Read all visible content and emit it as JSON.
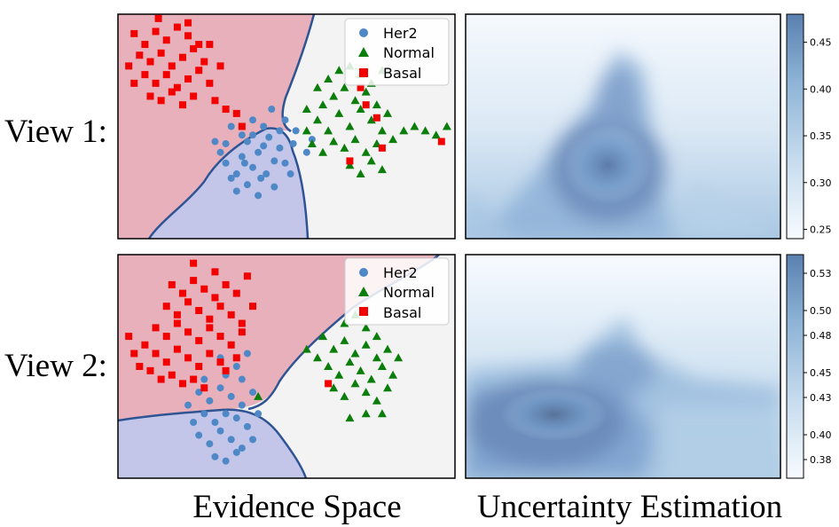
{
  "row_labels": [
    "View 1:",
    "View 2:"
  ],
  "column_titles": [
    "Evidence Space",
    "Uncertainty Estimation"
  ],
  "legend": [
    "Her2",
    "Normal",
    "Basal"
  ],
  "colors": {
    "her2": "#4f88c6",
    "normal": "#0a7d0a",
    "basal": "#f20000",
    "region_basal": "#e8b0bb",
    "region_her2": "#c3c6e8",
    "region_normal": "#f3f3f3",
    "boundary": "#2f5494",
    "unc_low": "#f7fbff",
    "unc_high": "#4a73a8"
  },
  "chart_data": [
    {
      "type": "scatter",
      "view": "View 1:",
      "title": "",
      "series": [
        {
          "name": "Her2",
          "marker": "circle",
          "points": [
            [
              0.42,
              0.52
            ],
            [
              0.4,
              0.44
            ],
            [
              0.38,
              0.4
            ],
            [
              0.46,
              0.38
            ],
            [
              0.44,
              0.3
            ],
            [
              0.5,
              0.33
            ],
            [
              0.48,
              0.45
            ],
            [
              0.52,
              0.4
            ],
            [
              0.55,
              0.3
            ],
            [
              0.58,
              0.36
            ],
            [
              0.6,
              0.42
            ],
            [
              0.54,
              0.52
            ],
            [
              0.46,
              0.48
            ],
            [
              0.5,
              0.55
            ],
            [
              0.56,
              0.47
            ],
            [
              0.44,
              0.22
            ],
            [
              0.48,
              0.25
            ],
            [
              0.4,
              0.35
            ],
            [
              0.36,
              0.45
            ],
            [
              0.62,
              0.35
            ],
            [
              0.64,
              0.3
            ],
            [
              0.65,
              0.44
            ],
            [
              0.7,
              0.4
            ],
            [
              0.72,
              0.46
            ],
            [
              0.57,
              0.6
            ],
            [
              0.62,
              0.55
            ],
            [
              0.66,
              0.5
            ],
            [
              0.52,
              0.2
            ],
            [
              0.58,
              0.24
            ],
            [
              0.42,
              0.28
            ],
            [
              0.5,
              0.48
            ],
            [
              0.54,
              0.43
            ],
            [
              0.47,
              0.35
            ],
            [
              0.53,
              0.28
            ],
            [
              0.6,
              0.5
            ]
          ]
        },
        {
          "name": "Normal",
          "marker": "triangle",
          "points": [
            [
              0.7,
              0.5
            ],
            [
              0.74,
              0.55
            ],
            [
              0.78,
              0.5
            ],
            [
              0.82,
              0.58
            ],
            [
              0.86,
              0.52
            ],
            [
              0.9,
              0.6
            ],
            [
              0.94,
              0.55
            ],
            [
              0.98,
              0.5
            ],
            [
              0.76,
              0.62
            ],
            [
              0.8,
              0.66
            ],
            [
              0.84,
              0.7
            ],
            [
              0.88,
              0.64
            ],
            [
              0.92,
              0.68
            ],
            [
              0.96,
              0.62
            ],
            [
              1.0,
              0.58
            ],
            [
              0.72,
              0.44
            ],
            [
              0.76,
              0.4
            ],
            [
              0.8,
              0.45
            ],
            [
              0.84,
              0.42
            ],
            [
              0.88,
              0.46
            ],
            [
              0.92,
              0.4
            ],
            [
              0.96,
              0.44
            ],
            [
              1.02,
              0.46
            ],
            [
              1.06,
              0.5
            ],
            [
              1.1,
              0.52
            ],
            [
              1.14,
              0.5
            ],
            [
              1.18,
              0.48
            ],
            [
              1.22,
              0.52
            ],
            [
              0.78,
              0.74
            ],
            [
              0.82,
              0.78
            ],
            [
              0.86,
              0.8
            ],
            [
              0.9,
              0.76
            ],
            [
              0.94,
              0.72
            ],
            [
              0.98,
              0.78
            ],
            [
              0.86,
              0.34
            ],
            [
              0.9,
              0.3
            ],
            [
              0.94,
              0.36
            ],
            [
              0.98,
              0.32
            ],
            [
              0.74,
              0.7
            ],
            [
              0.7,
              0.6
            ]
          ]
        },
        {
          "name": "Basal",
          "marker": "square",
          "points": [
            [
              0.06,
              0.95
            ],
            [
              0.1,
              0.9
            ],
            [
              0.14,
              0.96
            ],
            [
              0.18,
              0.92
            ],
            [
              0.22,
              0.98
            ],
            [
              0.26,
              0.94
            ],
            [
              0.3,
              0.9
            ],
            [
              0.08,
              0.85
            ],
            [
              0.12,
              0.82
            ],
            [
              0.16,
              0.86
            ],
            [
              0.2,
              0.8
            ],
            [
              0.24,
              0.84
            ],
            [
              0.28,
              0.88
            ],
            [
              0.32,
              0.82
            ],
            [
              0.1,
              0.76
            ],
            [
              0.14,
              0.72
            ],
            [
              0.18,
              0.76
            ],
            [
              0.22,
              0.7
            ],
            [
              0.26,
              0.74
            ],
            [
              0.3,
              0.78
            ],
            [
              0.34,
              0.72
            ],
            [
              0.12,
              0.66
            ],
            [
              0.16,
              0.64
            ],
            [
              0.2,
              0.68
            ],
            [
              0.24,
              0.62
            ],
            [
              0.28,
              0.66
            ],
            [
              0.36,
              0.64
            ],
            [
              0.4,
              0.6
            ],
            [
              0.44,
              0.58
            ],
            [
              0.04,
              0.8
            ],
            [
              0.06,
              0.72
            ],
            [
              0.34,
              0.9
            ],
            [
              0.38,
              0.8
            ],
            [
              0.26,
              1.0
            ],
            [
              0.15,
              1.02
            ],
            [
              0.46,
              0.52
            ],
            [
              0.92,
              0.62
            ],
            [
              0.96,
              0.56
            ],
            [
              0.9,
              0.7
            ],
            [
              0.98,
              0.42
            ],
            [
              1.2,
              0.45
            ],
            [
              0.86,
              0.36
            ]
          ]
        }
      ]
    },
    {
      "type": "heatmap",
      "view": "View 1:",
      "title": "",
      "colorbar_ticks": [
        0.25,
        0.3,
        0.35,
        0.4,
        0.45
      ],
      "colorbar_range": [
        0.24,
        0.48
      ]
    },
    {
      "type": "scatter",
      "view": "View 2:",
      "title": "",
      "series": [
        {
          "name": "Her2",
          "marker": "circle",
          "points": [
            [
              0.3,
              0.4
            ],
            [
              0.34,
              0.36
            ],
            [
              0.38,
              0.42
            ],
            [
              0.42,
              0.38
            ],
            [
              0.46,
              0.34
            ],
            [
              0.5,
              0.4
            ],
            [
              0.32,
              0.3
            ],
            [
              0.36,
              0.26
            ],
            [
              0.4,
              0.3
            ],
            [
              0.44,
              0.28
            ],
            [
              0.48,
              0.24
            ],
            [
              0.3,
              0.2
            ],
            [
              0.34,
              0.16
            ],
            [
              0.38,
              0.22
            ],
            [
              0.42,
              0.18
            ],
            [
              0.46,
              0.14
            ],
            [
              0.36,
              0.1
            ],
            [
              0.4,
              0.08
            ],
            [
              0.44,
              0.12
            ],
            [
              0.26,
              0.34
            ],
            [
              0.28,
              0.26
            ],
            [
              0.52,
              0.3
            ],
            [
              0.5,
              0.18
            ],
            [
              0.32,
              0.46
            ],
            [
              0.4,
              0.48
            ],
            [
              0.46,
              0.46
            ],
            [
              0.38,
              0.56
            ],
            [
              0.44,
              0.52
            ],
            [
              0.48,
              0.58
            ],
            [
              0.42,
              0.62
            ]
          ]
        },
        {
          "name": "Normal",
          "marker": "triangle",
          "points": [
            [
              0.76,
              0.66
            ],
            [
              0.8,
              0.6
            ],
            [
              0.84,
              0.64
            ],
            [
              0.88,
              0.58
            ],
            [
              0.92,
              0.62
            ],
            [
              0.96,
              0.56
            ],
            [
              0.78,
              0.52
            ],
            [
              0.82,
              0.48
            ],
            [
              0.86,
              0.54
            ],
            [
              0.9,
              0.5
            ],
            [
              0.94,
              0.46
            ],
            [
              0.98,
              0.52
            ],
            [
              1.02,
              0.48
            ],
            [
              0.8,
              0.42
            ],
            [
              0.84,
              0.38
            ],
            [
              0.88,
              0.44
            ],
            [
              0.92,
              0.4
            ],
            [
              0.96,
              0.36
            ],
            [
              1.0,
              0.42
            ],
            [
              0.84,
              0.72
            ],
            [
              0.88,
              0.76
            ],
            [
              0.92,
              0.7
            ],
            [
              0.96,
              0.66
            ],
            [
              1.0,
              0.6
            ],
            [
              1.04,
              0.56
            ],
            [
              0.74,
              0.56
            ],
            [
              0.7,
              0.6
            ],
            [
              0.86,
              0.28
            ],
            [
              0.92,
              0.3
            ],
            [
              0.98,
              0.3
            ],
            [
              0.52,
              0.38
            ]
          ]
        },
        {
          "name": "Basal",
          "marker": "square",
          "points": [
            [
              0.2,
              0.9
            ],
            [
              0.24,
              0.86
            ],
            [
              0.28,
              0.92
            ],
            [
              0.32,
              0.88
            ],
            [
              0.36,
              0.84
            ],
            [
              0.4,
              0.9
            ],
            [
              0.44,
              0.86
            ],
            [
              0.18,
              0.8
            ],
            [
              0.22,
              0.76
            ],
            [
              0.26,
              0.82
            ],
            [
              0.3,
              0.78
            ],
            [
              0.34,
              0.74
            ],
            [
              0.38,
              0.8
            ],
            [
              0.42,
              0.76
            ],
            [
              0.46,
              0.72
            ],
            [
              0.14,
              0.7
            ],
            [
              0.18,
              0.66
            ],
            [
              0.22,
              0.72
            ],
            [
              0.26,
              0.68
            ],
            [
              0.3,
              0.64
            ],
            [
              0.34,
              0.7
            ],
            [
              0.38,
              0.66
            ],
            [
              0.42,
              0.62
            ],
            [
              0.46,
              0.68
            ],
            [
              0.1,
              0.62
            ],
            [
              0.14,
              0.58
            ],
            [
              0.18,
              0.54
            ],
            [
              0.22,
              0.6
            ],
            [
              0.26,
              0.56
            ],
            [
              0.3,
              0.52
            ],
            [
              0.34,
              0.58
            ],
            [
              0.38,
              0.54
            ],
            [
              0.12,
              0.5
            ],
            [
              0.16,
              0.46
            ],
            [
              0.2,
              0.48
            ],
            [
              0.24,
              0.44
            ],
            [
              0.28,
              0.46
            ],
            [
              0.32,
              0.42
            ],
            [
              0.04,
              0.66
            ],
            [
              0.06,
              0.58
            ],
            [
              0.08,
              0.52
            ],
            [
              0.48,
              0.94
            ],
            [
              0.36,
              0.96
            ],
            [
              0.28,
              1.0
            ],
            [
              0.5,
              0.8
            ],
            [
              0.44,
              0.56
            ],
            [
              0.4,
              0.5
            ],
            [
              0.78,
              0.44
            ]
          ]
        }
      ]
    },
    {
      "type": "heatmap",
      "view": "View 2:",
      "title": "",
      "colorbar_ticks": [
        "0.38",
        "0.40",
        "0.43",
        "0.45",
        "0.48",
        "0.50",
        "0.53"
      ],
      "colorbar_range": [
        0.365,
        0.545
      ]
    }
  ]
}
